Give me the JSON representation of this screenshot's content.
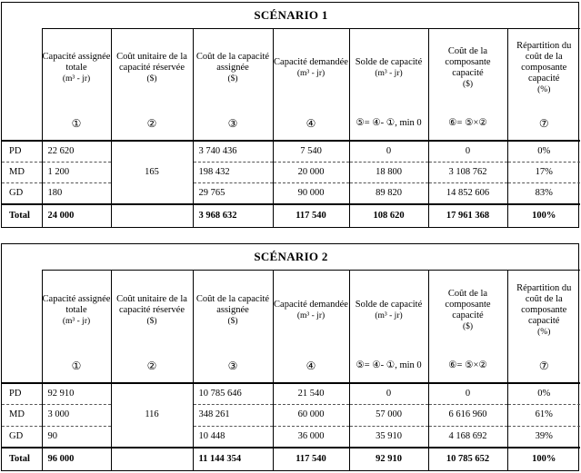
{
  "scenarios": [
    {
      "title": "SCÉNARIO 1",
      "headers": [
        {
          "label": "Capacité assignée totale",
          "unit": "(m³ - jr)"
        },
        {
          "label": "Coût unitaire de la capacité réservée",
          "unit": "($)"
        },
        {
          "label": "Coût de la capacité assignée",
          "unit": "($)"
        },
        {
          "label": "Capacité demandée",
          "unit": "(m³ - jr)"
        },
        {
          "label": "Solde de capacité",
          "unit": "(m³ - jr)"
        },
        {
          "label": "Coût de la composante capacité",
          "unit": "($)"
        },
        {
          "label": "Répartition du coût de la composante capacité",
          "unit": "(%)"
        }
      ],
      "symbols": [
        "①",
        "②",
        "③",
        "④",
        "⑤= ④- ①, min 0",
        "⑥= ⑤×②",
        "⑦"
      ],
      "unit_cost": "165",
      "rows": [
        {
          "label": "PD",
          "c1": "22 620",
          "c3": "3 740 436",
          "c4": "7 540",
          "c5": "0",
          "c6": "0",
          "c7": "0%"
        },
        {
          "label": "MD",
          "c1": "1 200",
          "c3": "198 432",
          "c4": "20 000",
          "c5": "18 800",
          "c6": "3 108 762",
          "c7": "17%"
        },
        {
          "label": "GD",
          "c1": "180",
          "c3": "29 765",
          "c4": "90 000",
          "c5": "89 820",
          "c6": "14 852 606",
          "c7": "83%"
        }
      ],
      "total": {
        "label": "Total",
        "c1": "24 000",
        "c3": "3 968 632",
        "c4": "117 540",
        "c5": "108 620",
        "c6": "17 961 368",
        "c7": "100%"
      }
    },
    {
      "title": "SCÉNARIO 2",
      "headers": [
        {
          "label": "Capacité assignée totale",
          "unit": "(m³ - jr)"
        },
        {
          "label": "Coût unitaire de la capacité réservée",
          "unit": "($)"
        },
        {
          "label": "Coût de la capacité assignée",
          "unit": "($)"
        },
        {
          "label": "Capacité demandée",
          "unit": "(m³ - jr)"
        },
        {
          "label": "Solde de capacité",
          "unit": "(m³ - jr)"
        },
        {
          "label": "Coût de la composante capacité",
          "unit": "($)"
        },
        {
          "label": "Répartition du coût de la composante capacité",
          "unit": "(%)"
        }
      ],
      "symbols": [
        "①",
        "②",
        "③",
        "④",
        "⑤= ④- ①, min 0",
        "⑥= ⑤×②",
        "⑦"
      ],
      "unit_cost": "116",
      "rows": [
        {
          "label": "PD",
          "c1": "92 910",
          "c3": "10 785 646",
          "c4": "21 540",
          "c5": "0",
          "c6": "0",
          "c7": "0%"
        },
        {
          "label": "MD",
          "c1": "3 000",
          "c3": "348 261",
          "c4": "60 000",
          "c5": "57 000",
          "c6": "6 616 960",
          "c7": "61%"
        },
        {
          "label": "GD",
          "c1": "90",
          "c3": "10 448",
          "c4": "36 000",
          "c5": "35 910",
          "c6": "4 168 692",
          "c7": "39%"
        }
      ],
      "total": {
        "label": "Total",
        "c1": "96 000",
        "c3": "11 144 354",
        "c4": "117 540",
        "c5": "92 910",
        "c6": "10 785 652",
        "c7": "100%"
      }
    }
  ]
}
